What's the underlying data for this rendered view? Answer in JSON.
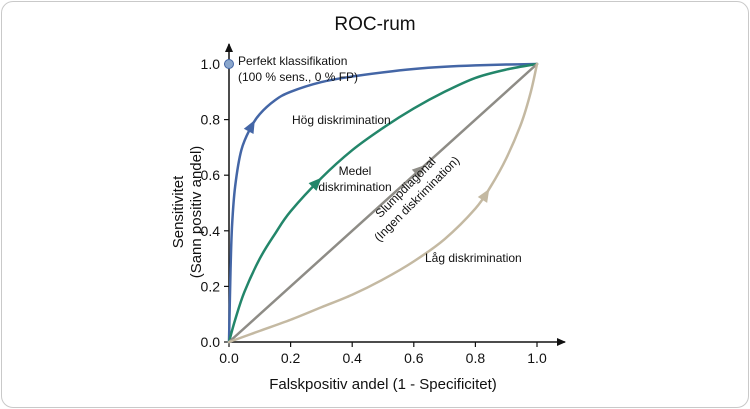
{
  "chart_data": {
    "type": "line",
    "title": "ROC-rum",
    "xlabel": "Falskpositiv andel (1 - Specificitet)",
    "ylabel_lines": [
      "Sensitivitet",
      "(Sann positiv andel)"
    ],
    "xlim": [
      0,
      1
    ],
    "ylim": [
      0,
      1
    ],
    "x_ticks": [
      "0.0",
      "0.2",
      "0.4",
      "0.6",
      "0.8",
      "1.0"
    ],
    "y_ticks": [
      "0.0",
      "0.2",
      "0.4",
      "0.6",
      "0.8",
      "1.0"
    ],
    "grid": false,
    "series": [
      {
        "name": "Hög diskrimination",
        "color": "#4466a6",
        "x": [
          0,
          0.005,
          0.01,
          0.02,
          0.04,
          0.07,
          0.1,
          0.15,
          0.2,
          0.3,
          0.4,
          0.5,
          0.6,
          0.7,
          0.8,
          0.9,
          1.0
        ],
        "y": [
          0,
          0.26,
          0.42,
          0.56,
          0.69,
          0.77,
          0.82,
          0.87,
          0.9,
          0.935,
          0.955,
          0.97,
          0.982,
          0.99,
          0.995,
          0.998,
          1.0
        ]
      },
      {
        "name": "Medel diskrimination",
        "color": "#23866a",
        "x": [
          0,
          0.02,
          0.05,
          0.1,
          0.15,
          0.2,
          0.3,
          0.4,
          0.5,
          0.6,
          0.7,
          0.8,
          0.9,
          1.0
        ],
        "y": [
          0,
          0.08,
          0.18,
          0.3,
          0.39,
          0.47,
          0.59,
          0.69,
          0.77,
          0.84,
          0.9,
          0.95,
          0.98,
          1.0
        ]
      },
      {
        "name": "Slumpdiagonal (Ingen diskrimination)",
        "color": "#8e8c86",
        "x": [
          0,
          1
        ],
        "y": [
          0,
          1
        ]
      },
      {
        "name": "Låg diskrimination",
        "color": "#c4b9a2",
        "x": [
          0,
          0.1,
          0.2,
          0.3,
          0.4,
          0.5,
          0.6,
          0.7,
          0.8,
          0.85,
          0.9,
          0.95,
          0.98,
          1.0
        ],
        "y": [
          0,
          0.04,
          0.08,
          0.125,
          0.17,
          0.225,
          0.29,
          0.37,
          0.48,
          0.56,
          0.66,
          0.79,
          0.9,
          1.0
        ]
      }
    ],
    "point": {
      "x": 0,
      "y": 1,
      "color": "#8aa6cc"
    },
    "annotations": {
      "perfect_line1": "Perfekt klassifikation",
      "perfect_line2": "(100 % sens., 0 % FP)",
      "high": "Hög diskrimination",
      "medium_line1": "Medel",
      "medium_line2": "diskrimination",
      "random_line1": "Slumpdiagonal",
      "random_line2": "(Ingen diskrimination)",
      "low": "Låg diskrimination"
    }
  }
}
